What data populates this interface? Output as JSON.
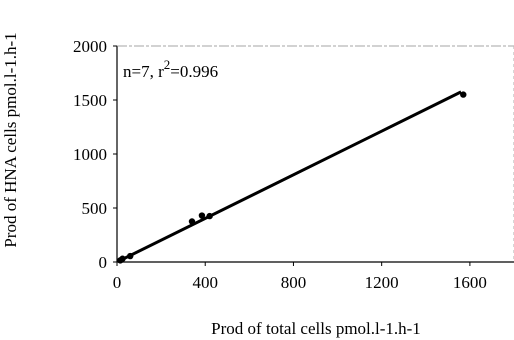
{
  "chart_data": {
    "type": "scatter",
    "xlabel": "Prod of total cells pmol.l-1.h-1",
    "ylabel": "Prod of HNA cells pmol.l-1.h-1",
    "xlim": [
      0,
      1800
    ],
    "ylim": [
      0,
      2000
    ],
    "x_ticks": [
      0,
      400,
      800,
      1200,
      1600
    ],
    "y_ticks": [
      0,
      500,
      1000,
      1500,
      2000
    ],
    "annotation": {
      "prefix": "n=7, r",
      "superscript": "2",
      "suffix": "=0.996"
    },
    "points": [
      {
        "x": 15,
        "y": 15
      },
      {
        "x": 25,
        "y": 30
      },
      {
        "x": 60,
        "y": 55
      },
      {
        "x": 340,
        "y": 375
      },
      {
        "x": 385,
        "y": 430
      },
      {
        "x": 420,
        "y": 425
      },
      {
        "x": 1570,
        "y": 1550
      }
    ],
    "regression_line": {
      "x": [
        10,
        1560
      ],
      "y": [
        10,
        1575
      ]
    },
    "grid": false
  }
}
